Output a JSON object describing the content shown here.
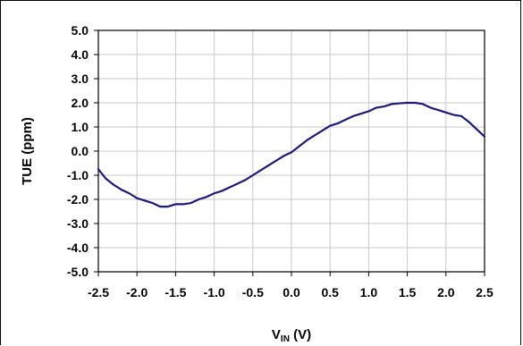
{
  "chart_data": {
    "type": "line",
    "xlabel": "V",
    "xlabel_sub": "IN",
    "xlabel_unit": " (V)",
    "ylabel": "TUE (ppm)",
    "xlim": [
      -2.5,
      2.5
    ],
    "ylim": [
      -5.0,
      5.0
    ],
    "x_ticks": [
      "-2.5",
      "-2.0",
      "-1.5",
      "-1.0",
      "-0.5",
      "0.0",
      "0.5",
      "1.0",
      "1.5",
      "2.0",
      "2.5"
    ],
    "y_ticks": [
      "5.0",
      "4.0",
      "3.0",
      "2.0",
      "1.0",
      "0.0",
      "-1.0",
      "-2.0",
      "-3.0",
      "-4.0",
      "-5.0"
    ],
    "grid": true,
    "line_color": "#1a1a7a",
    "series": [
      {
        "x": [
          -2.5,
          -2.4,
          -2.3,
          -2.2,
          -2.1,
          -2.0,
          -1.9,
          -1.8,
          -1.7,
          -1.6,
          -1.5,
          -1.4,
          -1.3,
          -1.2,
          -1.1,
          -1.0,
          -0.9,
          -0.8,
          -0.7,
          -0.6,
          -0.5,
          -0.4,
          -0.3,
          -0.2,
          -0.1,
          0.0,
          0.1,
          0.2,
          0.3,
          0.4,
          0.5,
          0.6,
          0.7,
          0.8,
          0.9,
          1.0,
          1.1,
          1.2,
          1.3,
          1.4,
          1.5,
          1.6,
          1.7,
          1.8,
          1.9,
          2.0,
          2.1,
          2.2,
          2.3,
          2.4,
          2.5
        ],
        "y": [
          -0.75,
          -1.15,
          -1.4,
          -1.6,
          -1.75,
          -1.95,
          -2.05,
          -2.15,
          -2.3,
          -2.3,
          -2.2,
          -2.2,
          -2.15,
          -2.0,
          -1.9,
          -1.75,
          -1.65,
          -1.5,
          -1.35,
          -1.2,
          -1.0,
          -0.8,
          -0.6,
          -0.4,
          -0.2,
          -0.05,
          0.2,
          0.45,
          0.65,
          0.85,
          1.05,
          1.15,
          1.3,
          1.45,
          1.55,
          1.65,
          1.8,
          1.85,
          1.95,
          1.98,
          2.0,
          2.0,
          1.95,
          1.8,
          1.7,
          1.6,
          1.5,
          1.45,
          1.2,
          0.9,
          0.6
        ]
      }
    ]
  }
}
